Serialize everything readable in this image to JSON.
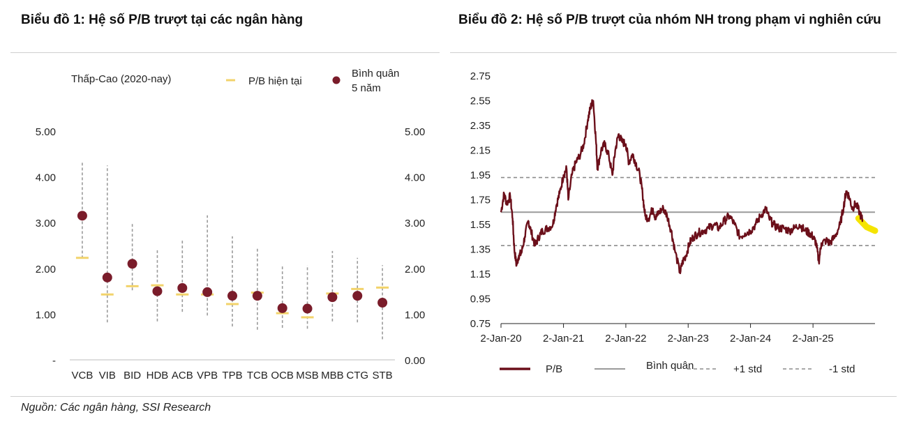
{
  "page": {
    "title1": "Biểu đồ 1: Hệ số P/B trượt tại các ngân hàng",
    "title2": "Biểu đồ 2: Hệ số P/B trượt của nhóm NH trong phạm vi nghiên cứu",
    "source": "Nguồn: Các ngân hàng, SSI Research"
  },
  "chart_data": [
    {
      "type": "scatter",
      "range_legend_label": "Thấp-Cao (2020-nay)",
      "legend": [
        {
          "label": "P/B hiện tại",
          "color": "#f2d36b",
          "marker": "dash"
        },
        {
          "label": "Bình quân 5 năm",
          "color": "#7a1c2a",
          "marker": "circle"
        }
      ],
      "categories": [
        "VCB",
        "VIB",
        "BID",
        "HDB",
        "ACB",
        "VPB",
        "TPB",
        "TCB",
        "OCB",
        "MSB",
        "MBB",
        "CTG",
        "STB"
      ],
      "low": [
        2.22,
        0.82,
        1.52,
        0.84,
        1.05,
        0.97,
        0.73,
        0.66,
        0.7,
        0.68,
        0.84,
        0.82,
        0.45
      ],
      "high": [
        4.35,
        4.25,
        3.0,
        2.42,
        2.63,
        3.16,
        2.7,
        2.46,
        2.07,
        2.07,
        2.38,
        2.23,
        2.07
      ],
      "current": [
        2.23,
        1.43,
        1.61,
        1.63,
        1.43,
        1.43,
        1.22,
        1.47,
        1.02,
        0.93,
        1.45,
        1.55,
        1.58
      ],
      "average": [
        3.15,
        1.8,
        2.1,
        1.5,
        1.57,
        1.48,
        1.4,
        1.4,
        1.13,
        1.12,
        1.37,
        1.4,
        1.25
      ],
      "y_ticks_left": [
        "-",
        "1.00",
        "2.00",
        "3.00",
        "4.00",
        "5.00"
      ],
      "y_ticks_right": [
        "0.00",
        "1.00",
        "2.00",
        "3.00",
        "4.00",
        "5.00"
      ],
      "ylim": [
        0,
        5
      ],
      "colors": {
        "range": "#9a9a9a",
        "current": "#f2d36b",
        "average": "#7a1c2a"
      }
    },
    {
      "type": "line",
      "x_tick_labels": [
        "2-Jan-20",
        "2-Jan-21",
        "2-Jan-22",
        "2-Jan-23",
        "2-Jan-24",
        "2-Jan-25"
      ],
      "y_tick_labels": [
        "0.75",
        "0.95",
        "1.15",
        "1.35",
        "1.55",
        "1.75",
        "1.95",
        "2.15",
        "2.35",
        "2.55",
        "2.75"
      ],
      "ylim": [
        0.75,
        2.75
      ],
      "xlim": [
        "2020-01-02",
        "2025-12-31"
      ],
      "series": [
        {
          "name": "P/B",
          "color": "#6b0f1a",
          "points": [
            [
              "2020-01-02",
              1.65
            ],
            [
              "2020-01-20",
              1.8
            ],
            [
              "2020-02-05",
              1.72
            ],
            [
              "2020-02-25",
              1.78
            ],
            [
              "2020-03-10",
              1.6
            ],
            [
              "2020-03-20",
              1.35
            ],
            [
              "2020-04-02",
              1.22
            ],
            [
              "2020-04-15",
              1.3
            ],
            [
              "2020-05-01",
              1.32
            ],
            [
              "2020-05-20",
              1.45
            ],
            [
              "2020-06-10",
              1.58
            ],
            [
              "2020-06-25",
              1.5
            ],
            [
              "2020-07-20",
              1.38
            ],
            [
              "2020-08-10",
              1.45
            ],
            [
              "2020-09-01",
              1.5
            ],
            [
              "2020-10-01",
              1.52
            ],
            [
              "2020-11-01",
              1.55
            ],
            [
              "2020-11-20",
              1.7
            ],
            [
              "2020-12-10",
              1.8
            ],
            [
              "2021-01-02",
              1.95
            ],
            [
              "2021-01-20",
              2.0
            ],
            [
              "2021-01-30",
              1.75
            ],
            [
              "2021-02-20",
              1.95
            ],
            [
              "2021-03-15",
              2.05
            ],
            [
              "2021-04-05",
              2.1
            ],
            [
              "2021-05-01",
              2.2
            ],
            [
              "2021-05-25",
              2.4
            ],
            [
              "2021-06-10",
              2.5
            ],
            [
              "2021-06-25",
              2.55
            ],
            [
              "2021-07-10",
              2.25
            ],
            [
              "2021-07-20",
              2.0
            ],
            [
              "2021-08-10",
              2.15
            ],
            [
              "2021-09-01",
              2.2
            ],
            [
              "2021-09-25",
              2.1
            ],
            [
              "2021-10-15",
              1.95
            ],
            [
              "2021-11-01",
              2.15
            ],
            [
              "2021-11-20",
              2.28
            ],
            [
              "2021-12-10",
              2.22
            ],
            [
              "2022-01-02",
              2.2
            ],
            [
              "2022-01-20",
              2.05
            ],
            [
              "2022-02-10",
              2.12
            ],
            [
              "2022-03-01",
              2.05
            ],
            [
              "2022-03-25",
              1.95
            ],
            [
              "2022-04-10",
              1.8
            ],
            [
              "2022-04-25",
              1.62
            ],
            [
              "2022-05-15",
              1.6
            ],
            [
              "2022-06-10",
              1.68
            ],
            [
              "2022-06-25",
              1.6
            ],
            [
              "2022-07-15",
              1.65
            ],
            [
              "2022-08-10",
              1.68
            ],
            [
              "2022-09-01",
              1.62
            ],
            [
              "2022-09-25",
              1.5
            ],
            [
              "2022-10-15",
              1.35
            ],
            [
              "2022-11-15",
              1.16
            ],
            [
              "2022-12-01",
              1.25
            ],
            [
              "2022-12-20",
              1.3
            ],
            [
              "2023-01-10",
              1.4
            ],
            [
              "2023-02-01",
              1.45
            ],
            [
              "2023-03-01",
              1.48
            ],
            [
              "2023-04-01",
              1.5
            ],
            [
              "2023-05-01",
              1.52
            ],
            [
              "2023-06-01",
              1.55
            ],
            [
              "2023-07-01",
              1.52
            ],
            [
              "2023-08-01",
              1.58
            ],
            [
              "2023-09-01",
              1.62
            ],
            [
              "2023-10-01",
              1.55
            ],
            [
              "2023-11-01",
              1.45
            ],
            [
              "2023-12-01",
              1.48
            ],
            [
              "2024-01-02",
              1.5
            ],
            [
              "2024-02-01",
              1.55
            ],
            [
              "2024-03-01",
              1.62
            ],
            [
              "2024-04-01",
              1.68
            ],
            [
              "2024-04-20",
              1.6
            ],
            [
              "2024-05-15",
              1.55
            ],
            [
              "2024-06-15",
              1.52
            ],
            [
              "2024-07-15",
              1.52
            ],
            [
              "2024-08-15",
              1.5
            ],
            [
              "2024-09-15",
              1.52
            ],
            [
              "2024-10-15",
              1.55
            ],
            [
              "2024-11-15",
              1.5
            ],
            [
              "2024-12-15",
              1.48
            ],
            [
              "2025-01-02",
              1.45
            ],
            [
              "2025-01-20",
              1.4
            ],
            [
              "2025-02-05",
              1.25
            ],
            [
              "2025-02-20",
              1.4
            ],
            [
              "2025-03-20",
              1.42
            ],
            [
              "2025-04-10",
              1.4
            ],
            [
              "2025-05-10",
              1.45
            ],
            [
              "2025-06-10",
              1.55
            ],
            [
              "2025-07-01",
              1.7
            ],
            [
              "2025-07-15",
              1.82
            ],
            [
              "2025-08-01",
              1.78
            ],
            [
              "2025-08-20",
              1.68
            ],
            [
              "2025-09-10",
              1.72
            ],
            [
              "2025-10-01",
              1.65
            ],
            [
              "2025-10-20",
              1.58
            ]
          ]
        },
        {
          "name": "Bình quân",
          "color": "#9a9a9a",
          "value": 1.65
        },
        {
          "name": "+1 std",
          "color": "#8c8c8c",
          "value": 1.93,
          "dashed": true
        },
        {
          "name": "-1 std",
          "color": "#8c8c8c",
          "value": 1.38,
          "dashed": true
        }
      ],
      "highlight": {
        "color": "#f5e400",
        "from": "2025-09-25",
        "to": "2025-12-31"
      }
    }
  ]
}
